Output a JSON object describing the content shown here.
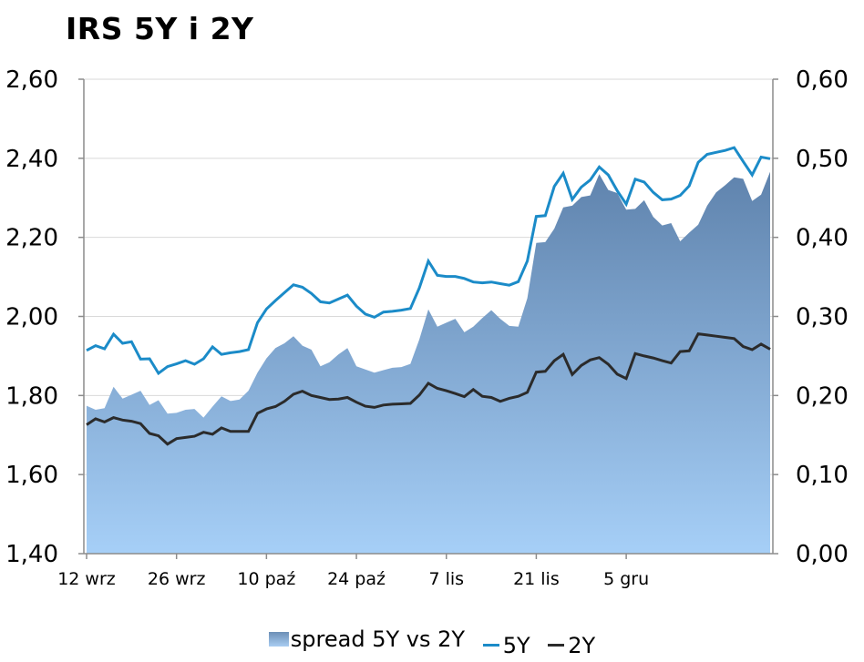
{
  "chart_data": {
    "type": "area",
    "title": "IRS 5Y i 2Y",
    "x_labels": [
      "12 wrz",
      "26 wrz",
      "10 paź",
      "24 paź",
      "7 lis",
      "21 lis",
      "5 gru"
    ],
    "y_left": {
      "min": 1.4,
      "max": 2.6,
      "ticks": [
        "1,40",
        "1,60",
        "1,80",
        "2,00",
        "2,20",
        "2,40",
        "2,60"
      ]
    },
    "y_right": {
      "min": 0.0,
      "max": 0.6,
      "ticks": [
        "0,00",
        "0,10",
        "0,20",
        "0,30",
        "0,40",
        "0,50",
        "0,60"
      ]
    },
    "grid": "horizontal",
    "legend_position": "bottom",
    "series": [
      {
        "name": "5Y",
        "axis": "left",
        "color": "#1b8bc8",
        "values": [
          1.914,
          1.926,
          1.918,
          1.955,
          1.932,
          1.936,
          1.892,
          1.893,
          1.856,
          1.873,
          1.88,
          1.888,
          1.879,
          1.893,
          1.923,
          1.904,
          1.908,
          1.911,
          1.916,
          1.984,
          2.019,
          2.04,
          2.06,
          2.08,
          2.074,
          2.058,
          2.037,
          2.034,
          2.044,
          2.054,
          2.026,
          2.006,
          1.998,
          2.011,
          2.013,
          2.016,
          2.02,
          2.072,
          2.14,
          2.104,
          2.101,
          2.101,
          2.096,
          2.087,
          2.085,
          2.087,
          2.083,
          2.079,
          2.088,
          2.14,
          2.253,
          2.255,
          2.329,
          2.362,
          2.296,
          2.327,
          2.345,
          2.378,
          2.358,
          2.318,
          2.284,
          2.347,
          2.34,
          2.314,
          2.295,
          2.297,
          2.306,
          2.33,
          2.39,
          2.41,
          2.415,
          2.42,
          2.427,
          2.392,
          2.358,
          2.403,
          2.399
        ]
      },
      {
        "name": "2Y",
        "axis": "left",
        "color": "#2b2b2b",
        "values": [
          1.726,
          1.741,
          1.733,
          1.744,
          1.738,
          1.735,
          1.729,
          1.704,
          1.698,
          1.677,
          1.691,
          1.694,
          1.697,
          1.707,
          1.702,
          1.718,
          1.709,
          1.709,
          1.709,
          1.755,
          1.766,
          1.772,
          1.785,
          1.803,
          1.811,
          1.8,
          1.795,
          1.79,
          1.791,
          1.795,
          1.783,
          1.773,
          1.77,
          1.776,
          1.778,
          1.779,
          1.78,
          1.801,
          1.831,
          1.818,
          1.812,
          1.805,
          1.797,
          1.815,
          1.798,
          1.795,
          1.785,
          1.793,
          1.798,
          1.808,
          1.859,
          1.861,
          1.888,
          1.904,
          1.853,
          1.876,
          1.89,
          1.896,
          1.879,
          1.854,
          1.843,
          1.906,
          1.9,
          1.895,
          1.888,
          1.882,
          1.911,
          1.913,
          1.956,
          1.953,
          1.95,
          1.947,
          1.944,
          1.924,
          1.916,
          1.93,
          1.917
        ]
      },
      {
        "name": "spread 5Y vs 2Y",
        "axis": "right",
        "type": "area",
        "color": "#7aa4cf",
        "values": [
          0.187,
          0.182,
          0.184,
          0.211,
          0.196,
          0.201,
          0.206,
          0.188,
          0.194,
          0.177,
          0.178,
          0.182,
          0.183,
          0.172,
          0.186,
          0.199,
          0.193,
          0.195,
          0.206,
          0.229,
          0.247,
          0.26,
          0.266,
          0.275,
          0.263,
          0.258,
          0.237,
          0.242,
          0.252,
          0.26,
          0.237,
          0.233,
          0.229,
          0.232,
          0.235,
          0.236,
          0.24,
          0.271,
          0.309,
          0.287,
          0.292,
          0.297,
          0.28,
          0.287,
          0.298,
          0.308,
          0.297,
          0.288,
          0.287,
          0.323,
          0.393,
          0.394,
          0.411,
          0.438,
          0.44,
          0.451,
          0.453,
          0.48,
          0.46,
          0.456,
          0.435,
          0.436,
          0.447,
          0.426,
          0.415,
          0.418,
          0.395,
          0.406,
          0.416,
          0.44,
          0.457,
          0.466,
          0.476,
          0.474,
          0.446,
          0.454,
          0.483
        ]
      }
    ]
  },
  "legend": {
    "spread_label": "spread 5Y vs 2Y",
    "five_label": "5Y",
    "two_label": "2Y"
  }
}
